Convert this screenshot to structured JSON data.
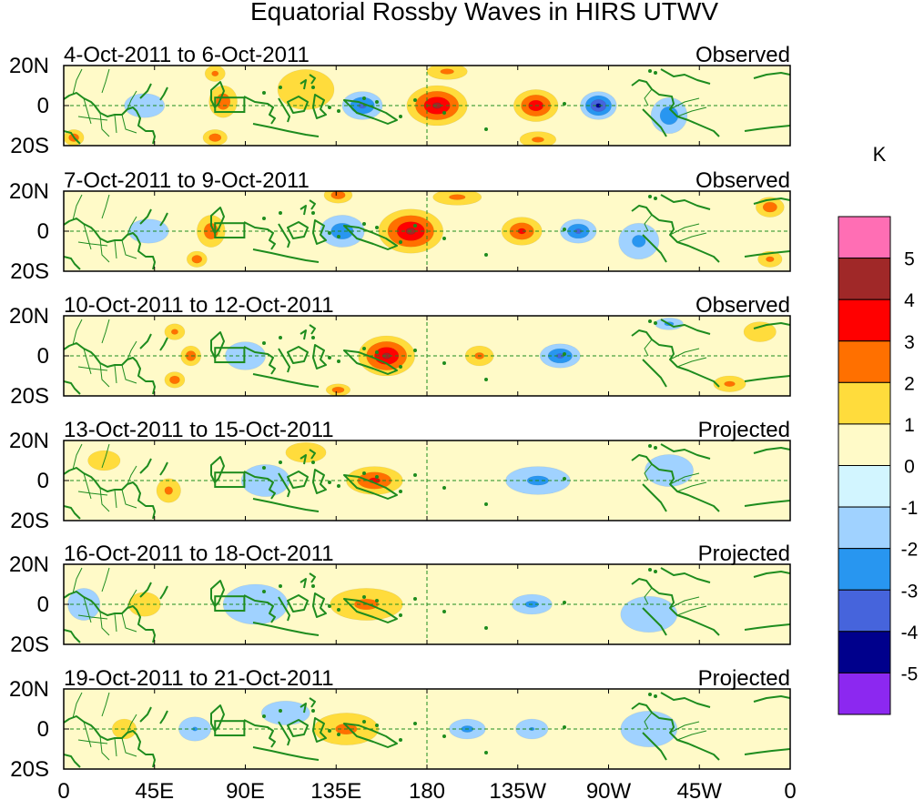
{
  "chart_data": {
    "type": "heatmap",
    "title": "Equatorial Rossby Waves in HIRS UTWV",
    "x_tick_labels": [
      "0",
      "45E",
      "90E",
      "135E",
      "180",
      "135W",
      "90W",
      "45W",
      "0"
    ],
    "x_ticks_deg_east": [
      0,
      45,
      90,
      135,
      180,
      225,
      270,
      315,
      360
    ],
    "y_tick_labels": [
      "20N",
      "0",
      "20S"
    ],
    "y_ticks_lat": [
      20,
      0,
      -20
    ],
    "lon_range": [
      0,
      360
    ],
    "lat_range": [
      -20,
      20
    ],
    "colorbar": {
      "unit": "K",
      "levels": [
        "5",
        "4",
        "3",
        "2",
        "1",
        "0",
        "-1",
        "-2",
        "-3",
        "-4",
        "-5"
      ],
      "colors": [
        "#ff6eb4",
        "#a02828",
        "#ff0000",
        "#ff7000",
        "#ffdc3c",
        "#fffac8",
        "#d2f5ff",
        "#a0d2ff",
        "#2896f0",
        "#4664dc",
        "#00008c",
        "#8c28f0"
      ]
    },
    "panels": [
      {
        "period": "4-Oct-2011 to 6-Oct-2011",
        "type": "Observed",
        "anomalies": [
          {
            "lon": 185,
            "lat": 0,
            "rx": 15,
            "ry": 10,
            "value": 3.5
          },
          {
            "lon": 234,
            "lat": 0,
            "rx": 11,
            "ry": 8,
            "value": 3
          },
          {
            "lon": 265,
            "lat": 0,
            "rx": 9,
            "ry": 7,
            "value": -3.5
          },
          {
            "lon": 148,
            "lat": 0,
            "rx": 10,
            "ry": 7,
            "value": -2.5
          },
          {
            "lon": 79,
            "lat": 2,
            "rx": 7,
            "ry": 8,
            "value": 2
          },
          {
            "lon": 75,
            "lat": -16,
            "rx": 6,
            "ry": 4,
            "value": 2
          },
          {
            "lon": 75,
            "lat": 16,
            "rx": 5,
            "ry": 4,
            "value": 1.5
          },
          {
            "lon": 5,
            "lat": -16,
            "rx": 5,
            "ry": 4,
            "value": 2
          },
          {
            "lon": 300,
            "lat": -5,
            "rx": 9,
            "ry": 9,
            "value": -2
          },
          {
            "lon": 190,
            "lat": 17,
            "rx": 10,
            "ry": 4,
            "value": 1.5
          },
          {
            "lon": 235,
            "lat": -17,
            "rx": 9,
            "ry": 4,
            "value": 1.5
          },
          {
            "lon": 120,
            "lat": 8,
            "rx": 14,
            "ry": 10,
            "value": 0.8
          },
          {
            "lon": 40,
            "lat": 0,
            "rx": 10,
            "ry": 6,
            "value": -1
          }
        ]
      },
      {
        "period": "7-Oct-2011 to 9-Oct-2011",
        "type": "Observed",
        "anomalies": [
          {
            "lon": 172,
            "lat": 0,
            "rx": 16,
            "ry": 11,
            "value": 3.5
          },
          {
            "lon": 227,
            "lat": 0,
            "rx": 10,
            "ry": 7,
            "value": 2.5
          },
          {
            "lon": 255,
            "lat": 0,
            "rx": 9,
            "ry": 6,
            "value": -2.5
          },
          {
            "lon": 138,
            "lat": 0,
            "rx": 11,
            "ry": 8,
            "value": -2
          },
          {
            "lon": 73,
            "lat": 0,
            "rx": 7,
            "ry": 8,
            "value": 2
          },
          {
            "lon": 66,
            "lat": -14,
            "rx": 5,
            "ry": 4,
            "value": 2
          },
          {
            "lon": 136,
            "lat": 18,
            "rx": 7,
            "ry": 4,
            "value": 2
          },
          {
            "lon": 350,
            "lat": 12,
            "rx": 7,
            "ry": 5,
            "value": 2
          },
          {
            "lon": 350,
            "lat": -14,
            "rx": 6,
            "ry": 4,
            "value": 1.5
          },
          {
            "lon": 195,
            "lat": 17,
            "rx": 12,
            "ry": 4,
            "value": 1.5
          },
          {
            "lon": 285,
            "lat": -5,
            "rx": 10,
            "ry": 9,
            "value": -1.5
          },
          {
            "lon": 42,
            "lat": 0,
            "rx": 10,
            "ry": 6,
            "value": -1
          }
        ]
      },
      {
        "period": "10-Oct-2011 to 12-Oct-2011",
        "type": "Observed",
        "anomalies": [
          {
            "lon": 160,
            "lat": 0,
            "rx": 14,
            "ry": 10,
            "value": 3.5
          },
          {
            "lon": 206,
            "lat": 0,
            "rx": 7,
            "ry": 5,
            "value": 1.5
          },
          {
            "lon": 246,
            "lat": 0,
            "rx": 10,
            "ry": 6,
            "value": -2.5
          },
          {
            "lon": 63,
            "lat": 0,
            "rx": 5,
            "ry": 5,
            "value": 2
          },
          {
            "lon": 55,
            "lat": -12,
            "rx": 5,
            "ry": 4,
            "value": 2
          },
          {
            "lon": 55,
            "lat": 12,
            "rx": 5,
            "ry": 4,
            "value": 1.5
          },
          {
            "lon": 136,
            "lat": -17,
            "rx": 6,
            "ry": 3,
            "value": 2
          },
          {
            "lon": 300,
            "lat": 16,
            "rx": 7,
            "ry": 3,
            "value": -1.5
          },
          {
            "lon": 330,
            "lat": -14,
            "rx": 8,
            "ry": 4,
            "value": 1.5
          },
          {
            "lon": 90,
            "lat": 0,
            "rx": 10,
            "ry": 7,
            "value": -1
          },
          {
            "lon": 345,
            "lat": 12,
            "rx": 8,
            "ry": 5,
            "value": 1
          }
        ]
      },
      {
        "period": "13-Oct-2011 to 15-Oct-2011",
        "type": "Projected",
        "anomalies": [
          {
            "lon": 154,
            "lat": 0,
            "rx": 14,
            "ry": 7,
            "value": 2.5
          },
          {
            "lon": 235,
            "lat": 0,
            "rx": 16,
            "ry": 7,
            "value": -1.5
          },
          {
            "lon": 52,
            "lat": -5,
            "rx": 6,
            "ry": 6,
            "value": 1.5
          },
          {
            "lon": 100,
            "lat": 0,
            "rx": 12,
            "ry": 8,
            "value": -1
          },
          {
            "lon": 120,
            "lat": 14,
            "rx": 10,
            "ry": 5,
            "value": 1
          },
          {
            "lon": 300,
            "lat": 5,
            "rx": 12,
            "ry": 8,
            "value": -1
          },
          {
            "lon": 20,
            "lat": 10,
            "rx": 8,
            "ry": 5,
            "value": 1
          }
        ]
      },
      {
        "period": "16-Oct-2011 to 18-Oct-2011",
        "type": "Projected",
        "anomalies": [
          {
            "lon": 150,
            "lat": 0,
            "rx": 18,
            "ry": 8,
            "value": 1.5
          },
          {
            "lon": 232,
            "lat": 0,
            "rx": 10,
            "ry": 5,
            "value": -1.5
          },
          {
            "lon": 95,
            "lat": 0,
            "rx": 16,
            "ry": 10,
            "value": -1
          },
          {
            "lon": 40,
            "lat": 0,
            "rx": 8,
            "ry": 6,
            "value": 1
          },
          {
            "lon": 290,
            "lat": -5,
            "rx": 14,
            "ry": 9,
            "value": -1
          },
          {
            "lon": 10,
            "lat": 0,
            "rx": 8,
            "ry": 8,
            "value": -1
          }
        ]
      },
      {
        "period": "19-Oct-2011 to 21-Oct-2011",
        "type": "Projected",
        "anomalies": [
          {
            "lon": 140,
            "lat": 0,
            "rx": 16,
            "ry": 8,
            "value": 1.5
          },
          {
            "lon": 200,
            "lat": 0,
            "rx": 9,
            "ry": 5,
            "value": -1.5
          },
          {
            "lon": 232,
            "lat": 0,
            "rx": 8,
            "ry": 5,
            "value": -1.2
          },
          {
            "lon": 65,
            "lat": 0,
            "rx": 8,
            "ry": 6,
            "value": -1.2
          },
          {
            "lon": 30,
            "lat": 0,
            "rx": 6,
            "ry": 5,
            "value": 1
          },
          {
            "lon": 290,
            "lat": 0,
            "rx": 14,
            "ry": 9,
            "value": -1
          },
          {
            "lon": 110,
            "lat": 8,
            "rx": 12,
            "ry": 6,
            "value": -1
          }
        ]
      }
    ]
  }
}
